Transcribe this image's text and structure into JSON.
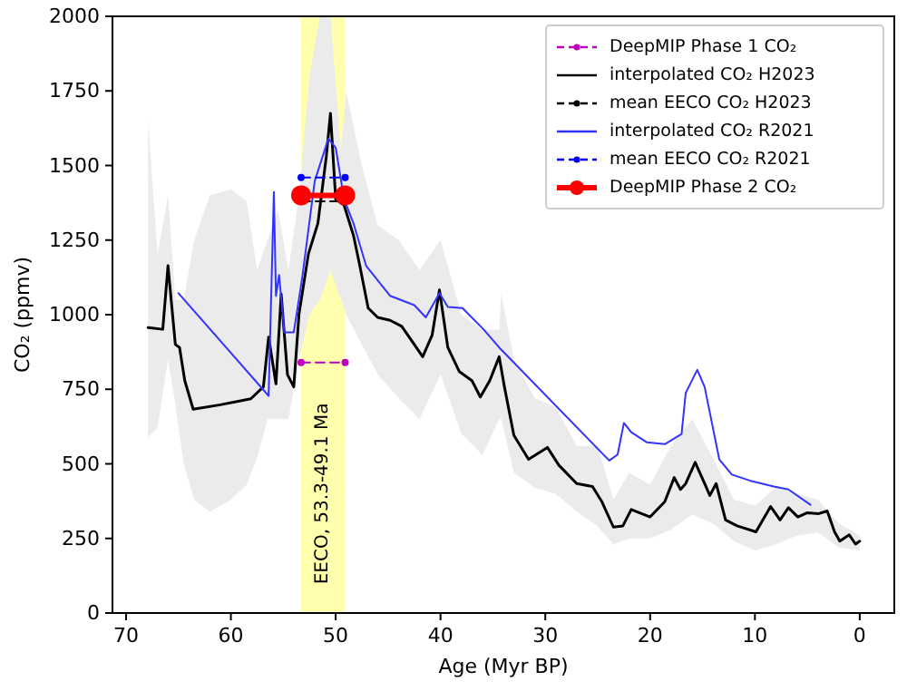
{
  "chart_data": {
    "type": "line",
    "xlabel": "Age (Myr BP)",
    "ylabel": "CO₂ (ppmv)",
    "xlim": [
      71.3,
      -3.3
    ],
    "xticks": [
      70,
      60,
      50,
      40,
      30,
      20,
      10,
      0
    ],
    "ylim": [
      0,
      2000
    ],
    "yticks": [
      0,
      250,
      500,
      750,
      1000,
      1250,
      1500,
      1750,
      2000
    ],
    "grid": false,
    "legend": "top right",
    "bands": [
      {
        "axis": "x",
        "from": 53.3,
        "to": 49.1,
        "label": "EECO, 53.3-49.1 Ma",
        "color": "#ffff99"
      }
    ],
    "series": [
      {
        "type": "area",
        "color": "#ebebeb",
        "values": [
          null,
          null,
          null,
          null,
          null,
          null,
          null,
          null,
          null,
          null,
          null,
          null,
          null,
          null,
          null,
          null,
          null,
          null,
          null,
          null,
          null,
          null,
          null,
          null,
          null,
          null,
          null,
          null,
          null,
          null,
          null,
          null,
          null,
          null,
          null,
          null,
          null,
          null,
          null,
          null,
          null,
          null,
          null,
          null,
          null,
          null
        ],
        "x": [
          67.9,
          67.0,
          66.0,
          65.3,
          64.5,
          63.5,
          62.0,
          60.0,
          58.5,
          57.5,
          56.5,
          55.5,
          54.5,
          53.5,
          52.5,
          51.5,
          50.5,
          49.5,
          49.0,
          47.5,
          46.0,
          44.0,
          42.0,
          40.0,
          38.0,
          36.0,
          34.4,
          34.2,
          33.0,
          31.0,
          29.0,
          27.0,
          25.0,
          23.5,
          22.0,
          20.0,
          18.0,
          16.0,
          14.0,
          12.0,
          10.0,
          8.0,
          6.0,
          4.0,
          2.0,
          0.0
        ],
        "lower": [
          590,
          620,
          850,
          700,
          500,
          380,
          340,
          380,
          430,
          520,
          650,
          650,
          650,
          850,
          1000,
          1050,
          1150,
          1050,
          1000,
          900,
          800,
          720,
          650,
          800,
          600,
          530,
          650,
          650,
          470,
          420,
          400,
          340,
          290,
          230,
          250,
          250,
          280,
          330,
          300,
          240,
          210,
          230,
          260,
          270,
          220,
          210
        ],
        "upper": [
          1650,
          1200,
          1400,
          1050,
          1050,
          1250,
          1400,
          1420,
          1380,
          1150,
          1250,
          1350,
          1150,
          1400,
          1800,
          2000,
          2000,
          1550,
          1750,
          1500,
          1300,
          1250,
          1150,
          1250,
          1000,
          950,
          950,
          1070,
          850,
          720,
          690,
          560,
          560,
          380,
          470,
          430,
          560,
          650,
          520,
          380,
          360,
          420,
          400,
          380,
          300,
          260
        ]
      },
      {
        "name": "DeepMIP Phase 1 CO₂",
        "color": "#bf00bf",
        "line_style": "dashed",
        "marker": "circle",
        "x": [
          53.3,
          49.1
        ],
        "values": [
          840,
          840
        ]
      },
      {
        "name": "interpolated CO₂ H2023",
        "color": "#000000",
        "line_style": "solid",
        "marker": "none",
        "x": [
          67.9,
          66.5,
          66.0,
          65.3,
          64.9,
          64.4,
          63.6,
          61.0,
          58.1,
          56.9,
          56.4,
          55.7,
          55.2,
          54.6,
          54.0,
          53.5,
          52.6,
          51.7,
          50.9,
          50.5,
          50.0,
          49.2,
          48.3,
          47.7,
          46.9,
          46.0,
          44.8,
          43.7,
          42.5,
          41.7,
          40.8,
          40.1,
          39.3,
          38.2,
          37.0,
          36.2,
          35.3,
          34.4,
          33.9,
          33.0,
          31.6,
          29.8,
          28.7,
          27.0,
          25.5,
          24.6,
          23.5,
          22.6,
          21.8,
          20.0,
          18.6,
          17.7,
          17.1,
          16.6,
          15.7,
          14.8,
          14.3,
          13.7,
          12.8,
          11.7,
          9.9,
          8.5,
          7.6,
          6.8,
          5.9,
          5.0,
          3.9,
          3.1,
          2.4,
          1.9,
          1.0,
          0.4,
          0.0
        ],
        "values": [
          957,
          951,
          1164,
          900,
          890,
          779,
          683,
          698,
          718,
          758,
          925,
          768,
          1069,
          799,
          758,
          1002,
          1204,
          1306,
          1529,
          1675,
          1387,
          1367,
          1265,
          1164,
          1022,
          991,
          981,
          961,
          900,
          859,
          931,
          1083,
          890,
          809,
          779,
          724,
          779,
          859,
          758,
          596,
          515,
          555,
          495,
          434,
          424,
          373,
          288,
          292,
          347,
          322,
          373,
          454,
          414,
          434,
          505,
          434,
          394,
          434,
          312,
          292,
          272,
          357,
          312,
          353,
          322,
          336,
          333,
          342,
          272,
          241,
          262,
          231,
          241
        ]
      },
      {
        "name": "mean EECO CO₂ H2023",
        "color": "#000000",
        "line_style": "dashed",
        "marker": "circle",
        "x": [
          53.3,
          49.1
        ],
        "values": [
          1380,
          1380
        ]
      },
      {
        "name": "interpolated CO₂ R2021",
        "color": "#3333ff",
        "line_style": "solid",
        "marker": "none",
        "x": [
          65.0,
          56.4,
          55.9,
          55.7,
          55.4,
          54.9,
          54.0,
          53.2,
          52.0,
          50.7,
          50.0,
          49.2,
          48.3,
          47.1,
          44.8,
          42.5,
          41.4,
          40.1,
          39.3,
          37.9,
          35.9,
          34.4,
          23.9,
          23.1,
          22.5,
          21.8,
          20.3,
          18.6,
          17.0,
          16.6,
          15.5,
          14.8,
          13.4,
          12.2,
          10.5,
          8.2,
          6.8,
          4.7
        ],
        "values": [
          1072,
          728,
          1411,
          1063,
          1133,
          941,
          941,
          1123,
          1448,
          1590,
          1560,
          1387,
          1306,
          1164,
          1063,
          1032,
          991,
          1072,
          1026,
          1022,
          951,
          890,
          511,
          531,
          637,
          606,
          572,
          566,
          600,
          738,
          815,
          758,
          515,
          464,
          444,
          424,
          414,
          363
        ]
      },
      {
        "name": "mean EECO CO₂ R2021",
        "color": "#0000ff",
        "line_style": "dashed",
        "marker": "circle",
        "x": [
          53.3,
          49.1
        ],
        "values": [
          1460,
          1460
        ]
      },
      {
        "name": "DeepMIP Phase 2 CO₂",
        "color": "#ff0000",
        "line_style": "solid",
        "marker": "circle",
        "x": [
          53.3,
          49.1
        ],
        "values": [
          1400,
          1400
        ]
      }
    ]
  }
}
